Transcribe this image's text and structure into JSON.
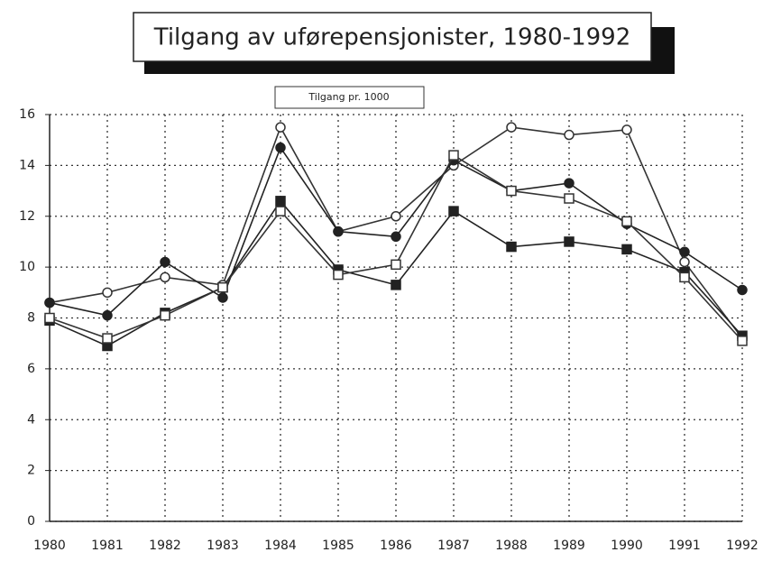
{
  "chart_data": {
    "type": "line",
    "title": "Tilgang av uførepensjonister, 1980-1992",
    "subtitle": "Tilgang pr. 1000",
    "categories": [
      "1980",
      "1981",
      "1982",
      "1983",
      "1984",
      "1985",
      "1986",
      "1987",
      "1988",
      "1989",
      "1990",
      "1991",
      "1992"
    ],
    "series": [
      {
        "color": "#333333",
        "marker": "open-circle",
        "values": [
          8.6,
          9.0,
          9.6,
          9.3,
          15.5,
          11.4,
          12.0,
          14.0,
          15.5,
          15.2,
          15.4,
          10.2,
          7.2
        ]
      },
      {
        "color": "#222222",
        "marker": "filled-circle",
        "values": [
          8.6,
          8.1,
          10.2,
          8.8,
          14.7,
          11.4,
          11.2,
          14.2,
          13.0,
          13.3,
          11.7,
          10.6,
          9.1
        ]
      },
      {
        "color": "#222222",
        "marker": "filled-square",
        "values": [
          7.9,
          6.9,
          8.2,
          9.2,
          12.6,
          9.9,
          9.3,
          12.2,
          10.8,
          11.0,
          10.7,
          9.8,
          7.3
        ]
      },
      {
        "color": "#333333",
        "marker": "open-square",
        "values": [
          8.0,
          7.2,
          8.1,
          9.2,
          12.2,
          9.7,
          10.1,
          14.4,
          13.0,
          12.7,
          11.8,
          9.6,
          7.1
        ]
      }
    ],
    "ylim": [
      0,
      16
    ],
    "yticks": [
      0,
      2,
      4,
      6,
      8,
      10,
      12,
      14,
      16
    ],
    "grid": true
  }
}
